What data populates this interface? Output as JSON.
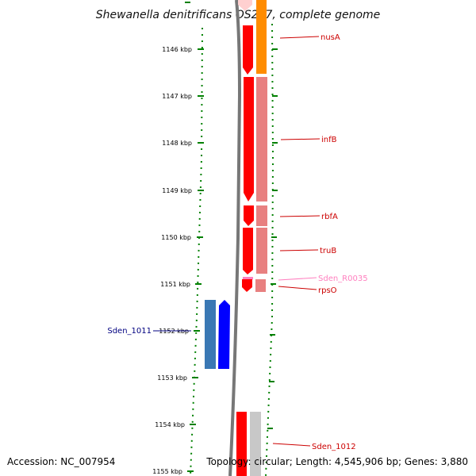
{
  "title": "Shewanella denitrificans OS217, complete genome",
  "footer": {
    "accession": "Accession: NC_007954",
    "topology": "Topology: circular; Length: 4,545,906 bp; Genes: 3,880"
  },
  "ticks": [
    "1146 kbp",
    "1147 kbp",
    "1148 kbp",
    "1149 kbp",
    "1150 kbp",
    "1151 kbp",
    "1152 kbp",
    "1153 kbp",
    "1154 kbp",
    "1155 kbp"
  ],
  "genes": {
    "nusA": "nusA",
    "infB": "infB",
    "rbfA": "rbfA",
    "truB": "truB",
    "Sden_R0035": "Sden_R0035",
    "rpsO": "rpsO",
    "Sden_1011": "Sden_1011",
    "Sden_1012": "Sden_1012"
  },
  "colors": {
    "forward_gene": "#ff0000",
    "nusA_track": "#ff8c00",
    "pink_track": "#e88080",
    "rna_gene": "#ff7fbf",
    "blue_gene": "#0000ff",
    "steelblue_gene": "#3a78b4",
    "backbone": "#777777",
    "ticks": "#008000"
  }
}
